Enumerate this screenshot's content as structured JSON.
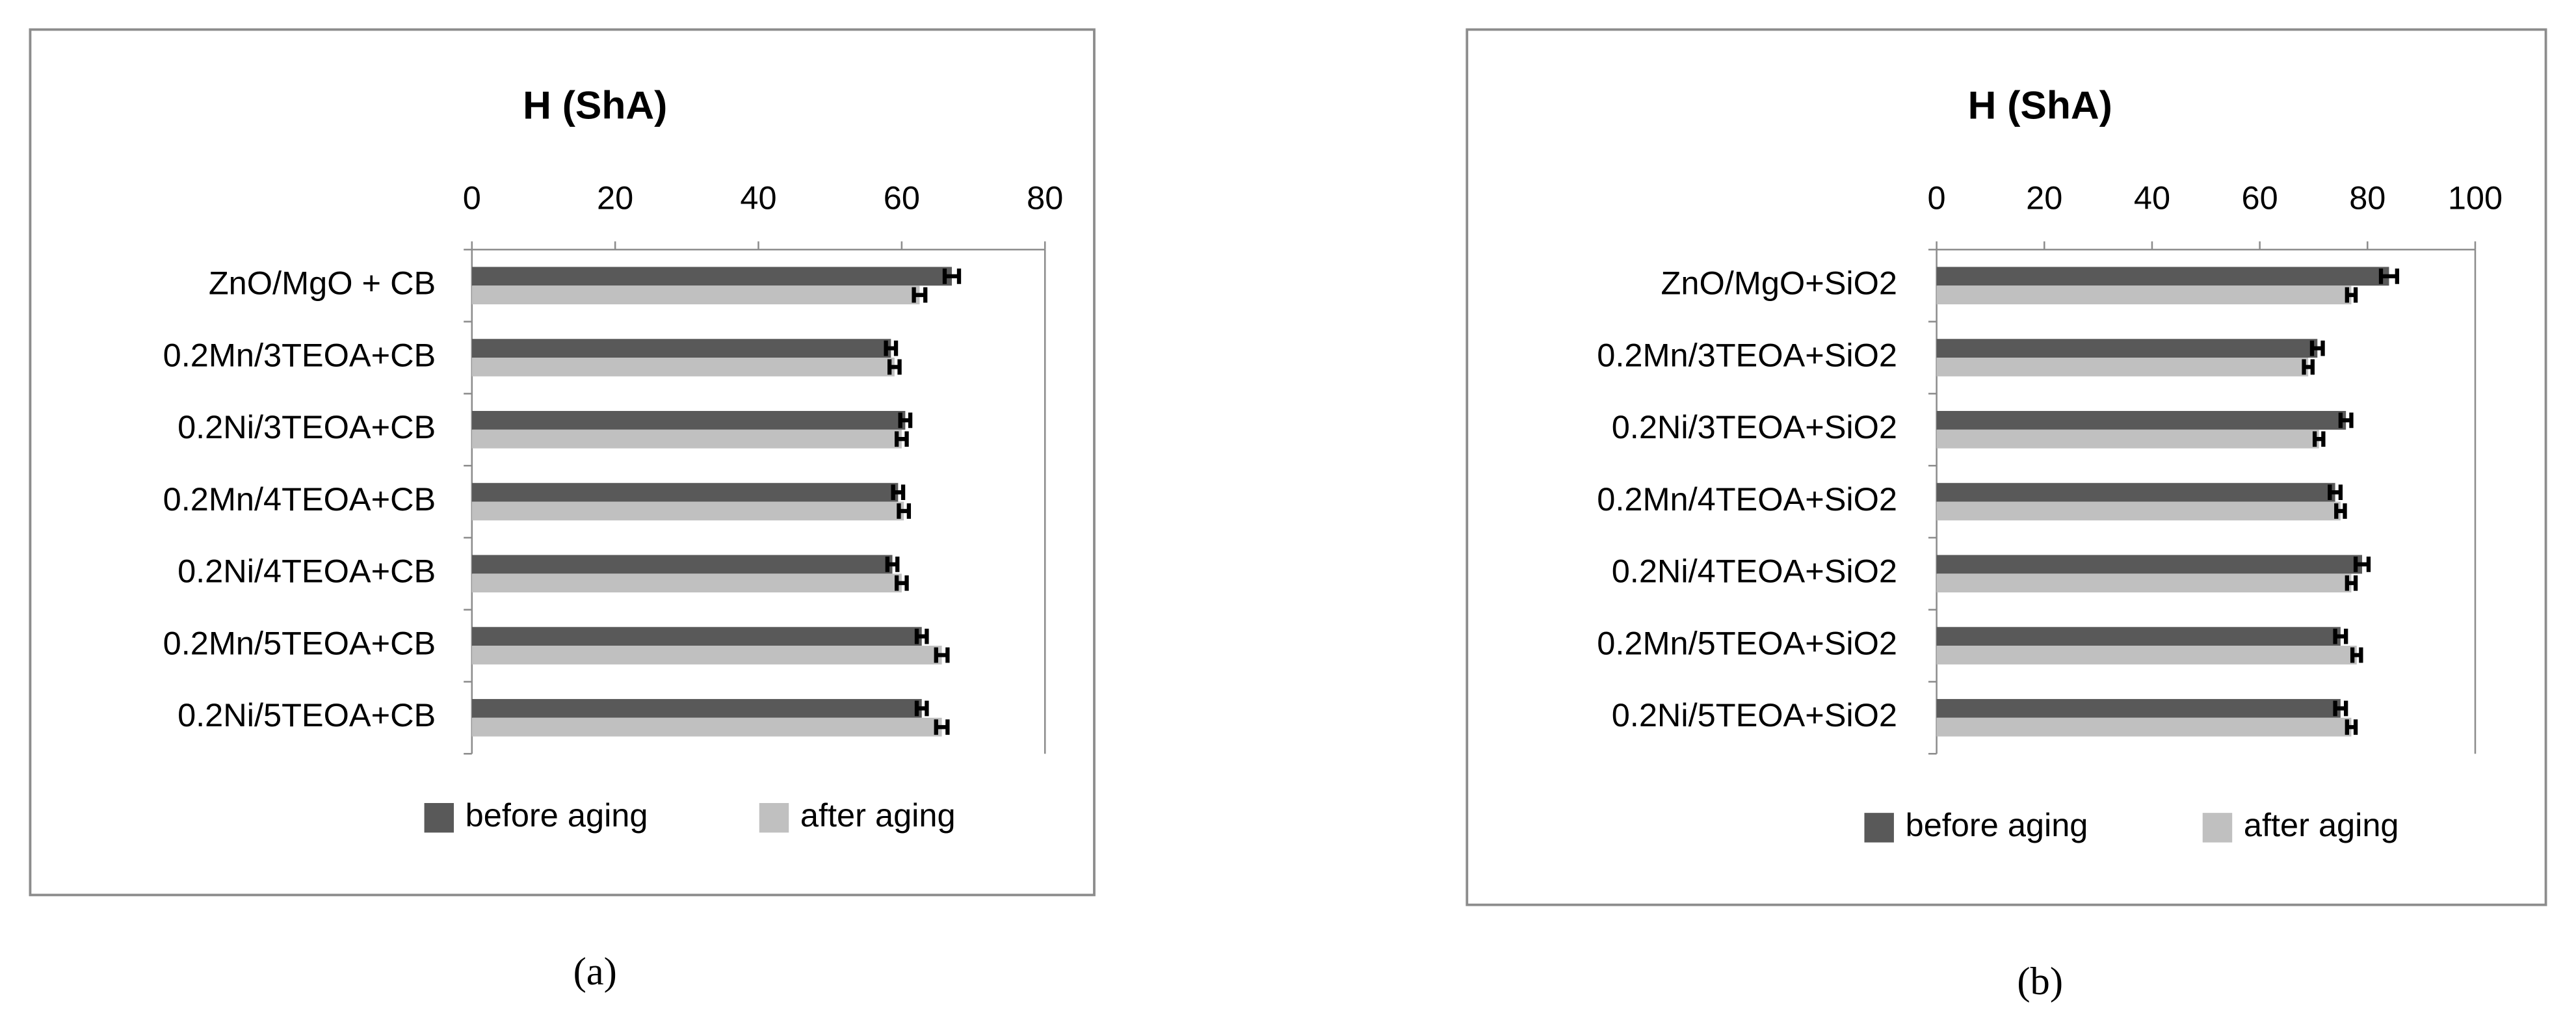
{
  "chart_data": [
    {
      "type": "bar",
      "orientation": "horizontal",
      "title": "H (ShA)",
      "caption": "(a)",
      "categories": [
        "ZnO/MgO + CB",
        "0.2Mn/3TEOA+CB",
        "0.2Ni/3TEOA+CB",
        "0.2Mn/4TEOA+CB",
        "0.2Ni/4TEOA+CB",
        "0.2Mn/5TEOA+CB",
        "0.2Ni/5TEOA+CB"
      ],
      "series": [
        {
          "name": "before aging",
          "color": "#595959",
          "values": [
            67,
            58.5,
            60.5,
            59.5,
            58.7,
            62.8,
            62.8
          ],
          "errors": [
            1,
            0.7,
            0.7,
            0.7,
            0.7,
            0.7,
            0.7
          ]
        },
        {
          "name": "after aging",
          "color": "#c0c0c0",
          "values": [
            62.5,
            59,
            60,
            60.3,
            60,
            65.6,
            65.6
          ],
          "errors": [
            0.8,
            0.7,
            0.7,
            0.7,
            0.7,
            0.8,
            0.8
          ]
        }
      ],
      "error_color": "#000000",
      "xlim": [
        0,
        80
      ],
      "xticks": [
        0,
        20,
        40,
        60,
        80
      ],
      "legend": "bottom"
    },
    {
      "type": "bar",
      "orientation": "horizontal",
      "title": "H (ShA)",
      "caption": "(b)",
      "categories": [
        "ZnO/MgO+SiO2",
        "0.2Mn/3TEOA+SiO2",
        "0.2Ni/3TEOA+SiO2",
        "0.2Mn/4TEOA+SiO2",
        "0.2Ni/4TEOA+SiO2",
        "0.2Mn/5TEOA+SiO2",
        "0.2Ni/5TEOA+SiO2"
      ],
      "series": [
        {
          "name": "before aging",
          "color": "#595959",
          "values": [
            84,
            70.7,
            76,
            74,
            79,
            75,
            75
          ],
          "errors": [
            1.5,
            1,
            1,
            1,
            1.2,
            1,
            1
          ]
        },
        {
          "name": "after aging",
          "color": "#c0c0c0",
          "values": [
            77,
            69,
            71,
            75,
            77,
            78,
            77
          ],
          "errors": [
            0.8,
            0.8,
            0.8,
            0.8,
            0.8,
            0.8,
            0.8
          ]
        }
      ],
      "error_color": "#000000",
      "xlim": [
        0,
        100
      ],
      "xticks": [
        0,
        20,
        40,
        60,
        80,
        100
      ],
      "legend": "bottom"
    }
  ]
}
